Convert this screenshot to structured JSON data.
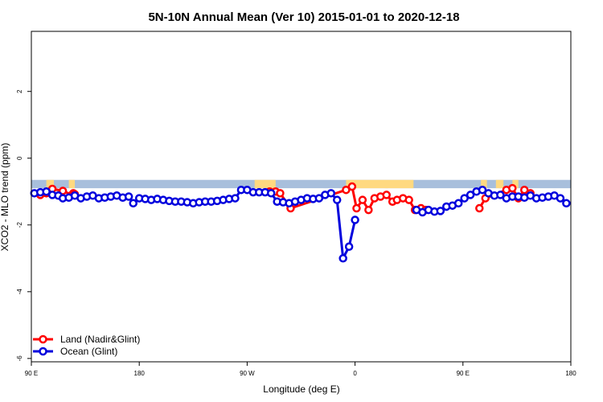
{
  "colors": {
    "land": "#ff0000",
    "ocean": "#0000dd",
    "band_sea": "#a8bfdc",
    "band_land": "#ffd980"
  },
  "chart_data": {
    "type": "line",
    "title": "5N-10N Annual Mean (Ver 10)   2015-01-01 to 2020-12-18",
    "xlabel": "Longitude (deg E)",
    "ylabel": "XCO2 - MLO trend (ppm)",
    "xlim": [
      30,
      390
    ],
    "ylim": [
      -6.1,
      3.8
    ],
    "x_ticks": [
      {
        "value": 30,
        "label": "90 E"
      },
      {
        "value": 102,
        "label": "180"
      },
      {
        "value": 174,
        "label": "90 W"
      },
      {
        "value": 246,
        "label": "0"
      },
      {
        "value": 318,
        "label": "90 E"
      },
      {
        "value": 390,
        "label": "180"
      }
    ],
    "y_ticks": [
      {
        "value": -6,
        "label": "-6"
      },
      {
        "value": -4,
        "label": "-4"
      },
      {
        "value": -2,
        "label": "-2"
      },
      {
        "value": 0,
        "label": "0"
      },
      {
        "value": 2,
        "label": "2"
      }
    ],
    "land_band": {
      "y_range": [
        -0.9,
        -0.65
      ],
      "land_segments": [
        [
          40,
          45
        ],
        [
          55,
          59
        ],
        [
          179,
          193
        ],
        [
          240,
          285
        ],
        [
          330,
          334
        ],
        [
          340,
          345
        ],
        [
          351,
          355
        ]
      ]
    },
    "legend": {
      "position": "bottom-left"
    },
    "series": [
      {
        "name": "Land (Nadir&Glint)",
        "color_key": "land",
        "segments": [
          [
            [
              36,
              -1.1
            ],
            [
              40,
              -1.05
            ],
            [
              44,
              -0.92
            ],
            [
              51,
              -0.98
            ],
            [
              57,
              -1.1
            ],
            [
              58,
              -1.05
            ],
            [
              59,
              -1.08
            ]
          ],
          [
            [
              189,
              -1.0
            ],
            [
              193,
              -1.0
            ],
            [
              196,
              -1.05
            ],
            [
              203,
              -1.5
            ],
            [
              240,
              -0.95
            ],
            [
              244,
              -0.85
            ],
            [
              247,
              -1.5
            ],
            [
              251,
              -1.25
            ],
            [
              255,
              -1.55
            ],
            [
              259,
              -1.2
            ],
            [
              263,
              -1.15
            ],
            [
              267,
              -1.1
            ],
            [
              271,
              -1.3
            ],
            [
              274,
              -1.25
            ],
            [
              278,
              -1.2
            ],
            [
              282,
              -1.25
            ],
            [
              286,
              -1.55
            ],
            [
              290,
              -1.5
            ],
            [
              293,
              -1.55
            ]
          ],
          [
            [
              329,
              -1.5
            ],
            [
              333,
              -1.2
            ],
            [
              347,
              -0.95
            ],
            [
              351,
              -0.9
            ],
            [
              355,
              -1.2
            ],
            [
              359,
              -0.95
            ],
            [
              363,
              -1.05
            ]
          ]
        ]
      },
      {
        "name": "Ocean (Glint)",
        "color_key": "ocean",
        "segments": [
          [
            [
              32,
              -1.05
            ],
            [
              36,
              -1.02
            ],
            [
              40,
              -1.0
            ],
            [
              44,
              -1.1
            ],
            [
              48,
              -1.12
            ],
            [
              51,
              -1.2
            ],
            [
              55,
              -1.18
            ],
            [
              59,
              -1.12
            ],
            [
              63,
              -1.2
            ],
            [
              67,
              -1.15
            ],
            [
              71,
              -1.12
            ],
            [
              75,
              -1.2
            ],
            [
              79,
              -1.18
            ],
            [
              83,
              -1.15
            ],
            [
              87,
              -1.12
            ],
            [
              91,
              -1.18
            ],
            [
              95,
              -1.15
            ],
            [
              98,
              -1.35
            ],
            [
              102,
              -1.2
            ],
            [
              106,
              -1.22
            ],
            [
              110,
              -1.25
            ],
            [
              114,
              -1.22
            ],
            [
              118,
              -1.25
            ],
            [
              122,
              -1.28
            ],
            [
              126,
              -1.3
            ],
            [
              130,
              -1.3
            ],
            [
              134,
              -1.32
            ],
            [
              138,
              -1.35
            ],
            [
              142,
              -1.32
            ],
            [
              146,
              -1.3
            ],
            [
              150,
              -1.3
            ],
            [
              154,
              -1.28
            ],
            [
              158,
              -1.25
            ],
            [
              162,
              -1.22
            ],
            [
              166,
              -1.2
            ],
            [
              170,
              -0.95
            ],
            [
              174,
              -0.95
            ],
            [
              178,
              -1.02
            ],
            [
              182,
              -1.02
            ],
            [
              186,
              -1.02
            ],
            [
              190,
              -1.05
            ],
            [
              194,
              -1.3
            ],
            [
              198,
              -1.32
            ],
            [
              202,
              -1.35
            ],
            [
              206,
              -1.3
            ],
            [
              210,
              -1.25
            ],
            [
              214,
              -1.2
            ],
            [
              218,
              -1.22
            ],
            [
              222,
              -1.2
            ],
            [
              226,
              -1.1
            ],
            [
              230,
              -1.05
            ],
            [
              234,
              -1.25
            ],
            [
              238,
              -3.0
            ],
            [
              242,
              -2.65
            ],
            [
              246,
              -1.85
            ]
          ],
          [
            [
              287,
              -1.55
            ],
            [
              291,
              -1.62
            ],
            [
              295,
              -1.55
            ],
            [
              299,
              -1.6
            ],
            [
              303,
              -1.58
            ],
            [
              307,
              -1.45
            ],
            [
              311,
              -1.42
            ],
            [
              315,
              -1.35
            ],
            [
              319,
              -1.2
            ],
            [
              323,
              -1.1
            ],
            [
              327,
              -1.0
            ],
            [
              331,
              -0.95
            ],
            [
              335,
              -1.05
            ],
            [
              339,
              -1.12
            ],
            [
              343,
              -1.1
            ],
            [
              347,
              -1.2
            ],
            [
              351,
              -1.15
            ],
            [
              355,
              -1.15
            ],
            [
              359,
              -1.18
            ],
            [
              363,
              -1.12
            ],
            [
              367,
              -1.2
            ],
            [
              371,
              -1.18
            ],
            [
              375,
              -1.15
            ],
            [
              379,
              -1.12
            ],
            [
              383,
              -1.2
            ],
            [
              387,
              -1.35
            ]
          ]
        ]
      }
    ]
  }
}
